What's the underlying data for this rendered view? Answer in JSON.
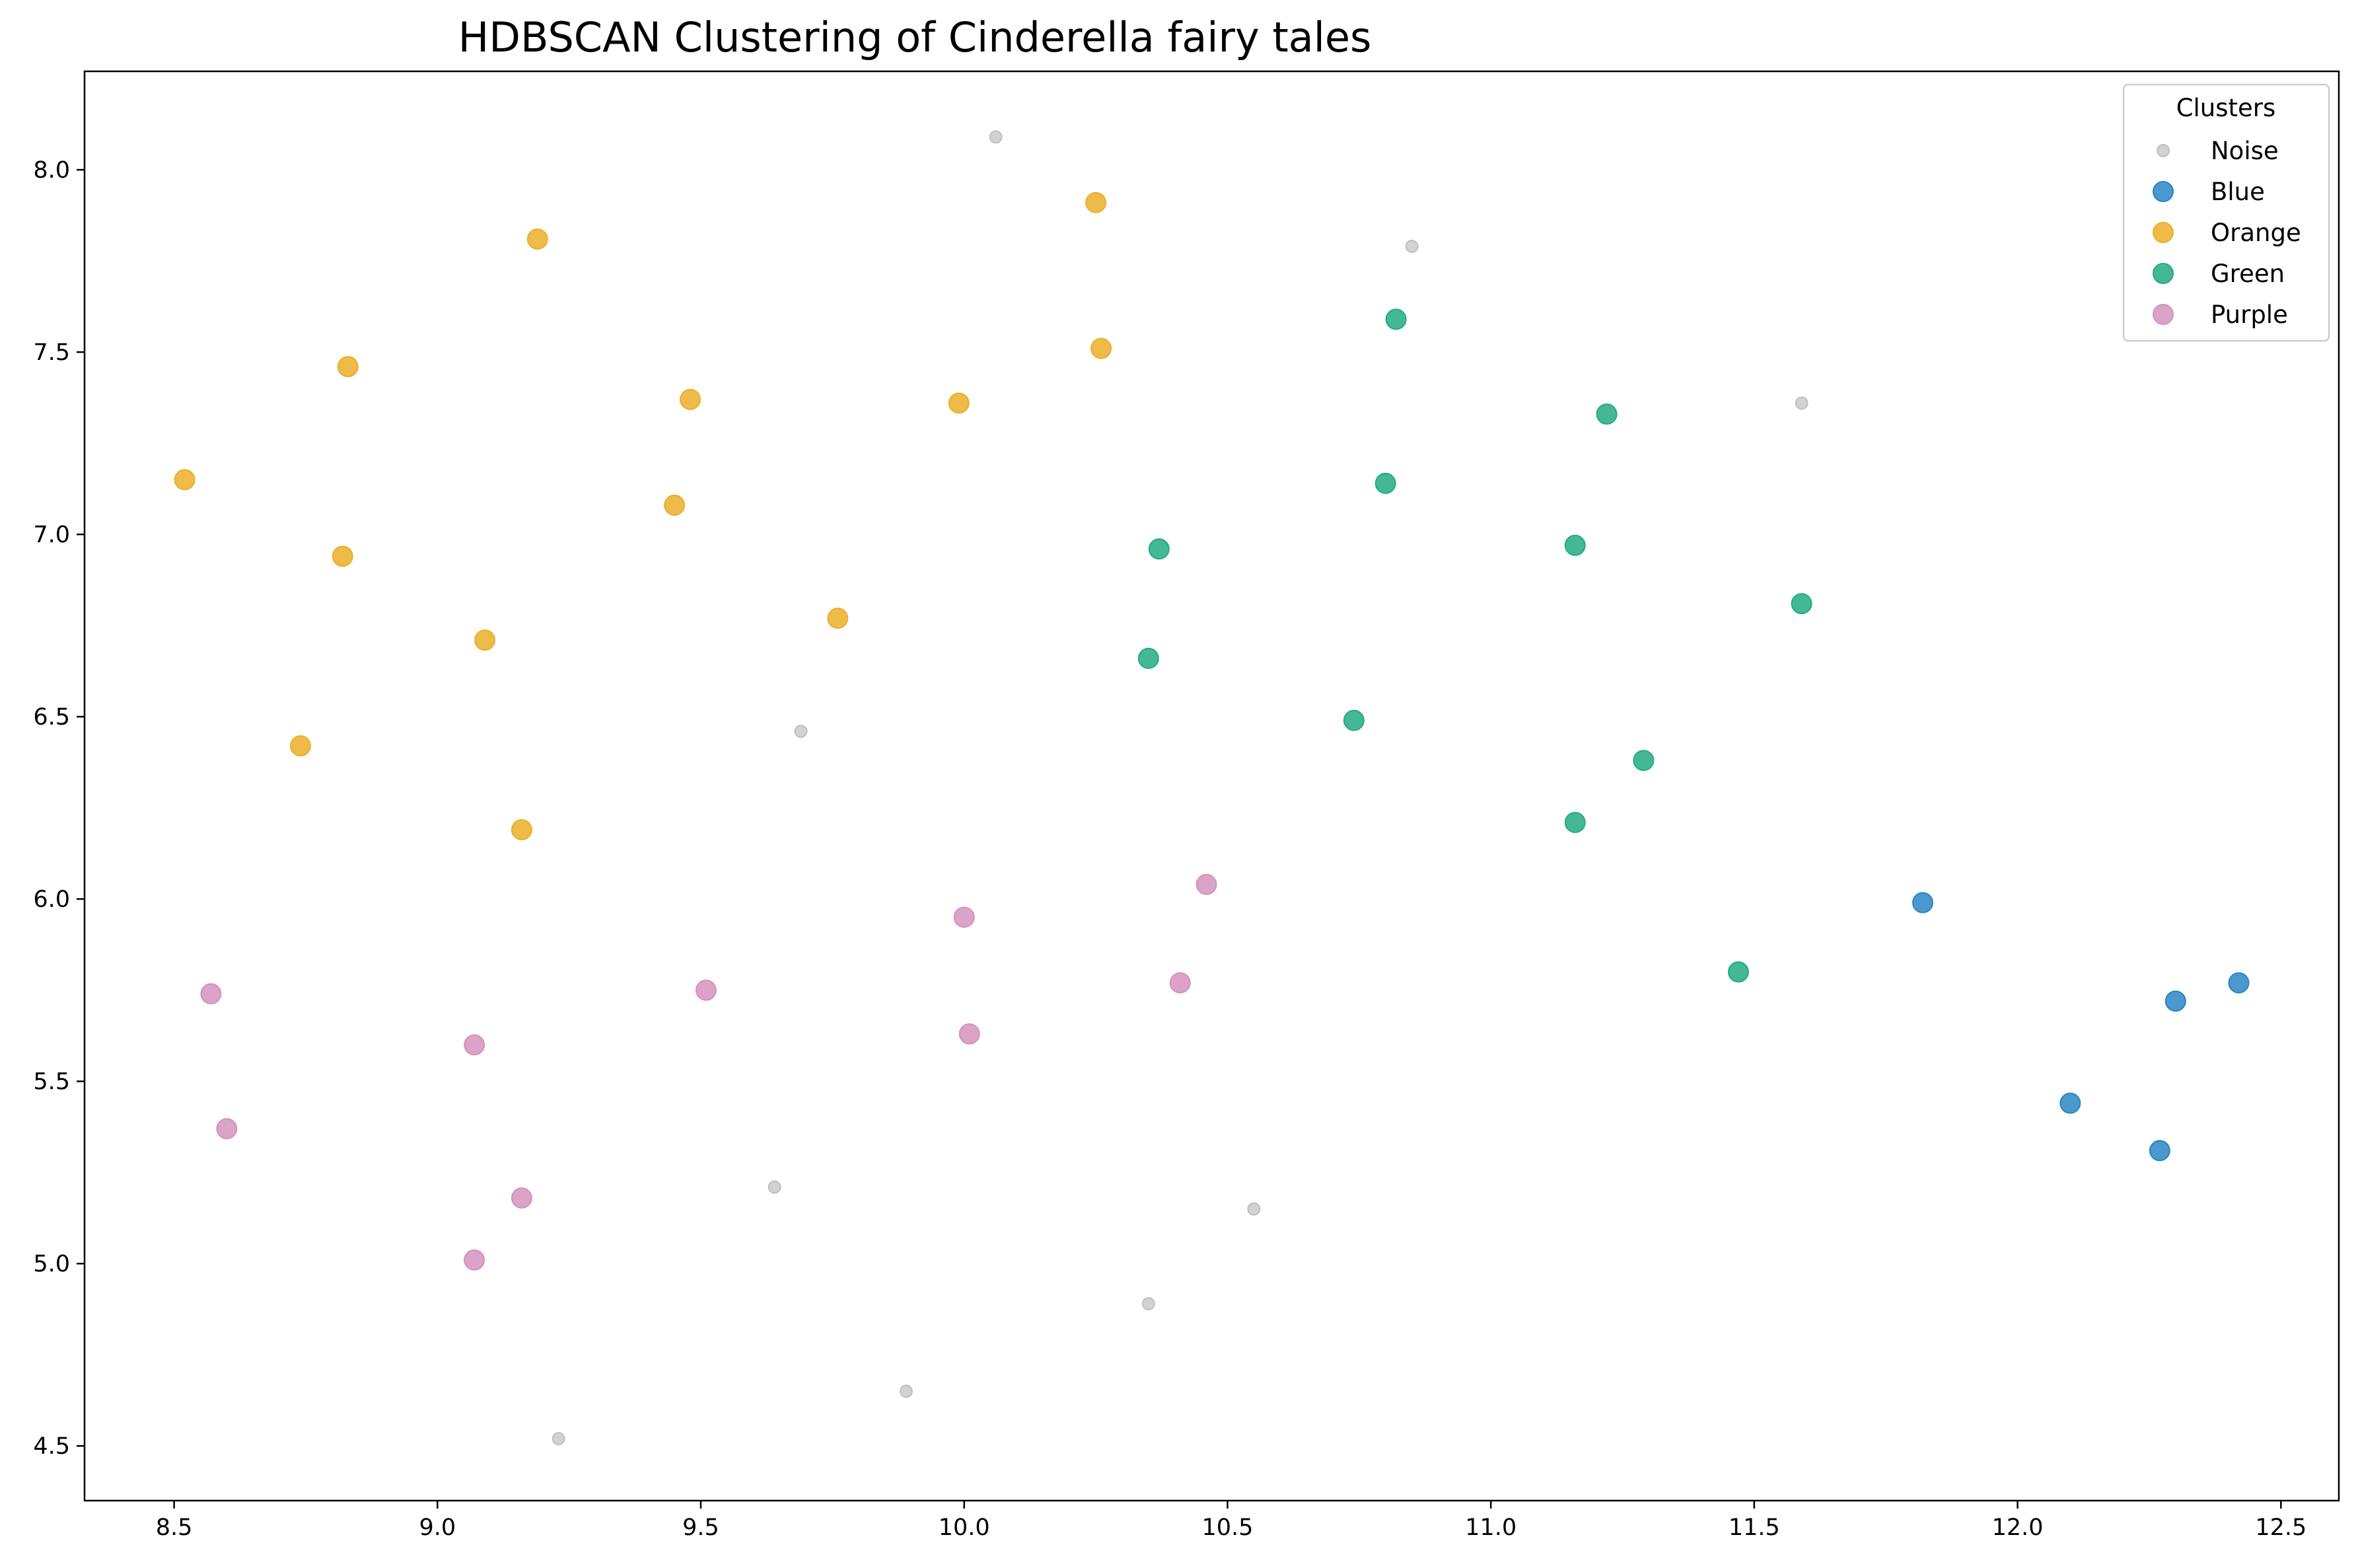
{
  "chart_data": {
    "type": "scatter",
    "title": "HDBSCAN Clustering of Cinderella fairy tales",
    "xlabel": "",
    "ylabel": "",
    "xlim": [
      8.33,
      12.61
    ],
    "ylim": [
      4.35,
      8.27
    ],
    "xticks": [
      8.5,
      9.0,
      9.5,
      10.0,
      10.5,
      11.0,
      11.5,
      12.0,
      12.5
    ],
    "yticks": [
      4.5,
      5.0,
      5.5,
      6.0,
      6.5,
      7.0,
      7.5,
      8.0
    ],
    "xtick_labels": [
      "8.5",
      "9.0",
      "9.5",
      "10.0",
      "10.5",
      "11.0",
      "11.5",
      "12.0",
      "12.5"
    ],
    "ytick_labels": [
      "4.5",
      "5.0",
      "5.5",
      "6.0",
      "6.5",
      "7.0",
      "7.5",
      "8.0"
    ],
    "grid": false,
    "legend": {
      "title": "Clusters",
      "position": "top-right"
    },
    "series": [
      {
        "name": "Noise",
        "color": "#bfbfbf",
        "marker": "small",
        "points": [
          [
            10.06,
            8.09
          ],
          [
            10.85,
            7.79
          ],
          [
            11.59,
            7.36
          ],
          [
            9.69,
            6.46
          ],
          [
            9.64,
            5.21
          ],
          [
            10.55,
            5.15
          ],
          [
            10.35,
            4.89
          ],
          [
            9.89,
            4.65
          ],
          [
            9.23,
            4.52
          ]
        ]
      },
      {
        "name": "Blue",
        "color": "#2a86c4",
        "marker": "large",
        "points": [
          [
            11.82,
            5.99
          ],
          [
            12.42,
            5.77
          ],
          [
            12.3,
            5.72
          ],
          [
            12.1,
            5.44
          ],
          [
            12.27,
            5.31
          ]
        ]
      },
      {
        "name": "Orange",
        "color": "#ebaf2a",
        "marker": "large",
        "points": [
          [
            10.25,
            7.91
          ],
          [
            9.19,
            7.81
          ],
          [
            8.83,
            7.46
          ],
          [
            10.26,
            7.51
          ],
          [
            9.48,
            7.37
          ],
          [
            9.99,
            7.36
          ],
          [
            8.52,
            7.15
          ],
          [
            9.45,
            7.08
          ],
          [
            8.82,
            6.94
          ],
          [
            9.09,
            6.71
          ],
          [
            9.76,
            6.77
          ],
          [
            8.74,
            6.42
          ],
          [
            9.16,
            6.19
          ]
        ]
      },
      {
        "name": "Green",
        "color": "#23ab84",
        "marker": "large",
        "points": [
          [
            10.82,
            7.59
          ],
          [
            11.22,
            7.33
          ],
          [
            10.8,
            7.14
          ],
          [
            10.37,
            6.96
          ],
          [
            11.16,
            6.97
          ],
          [
            11.59,
            6.81
          ],
          [
            10.35,
            6.66
          ],
          [
            10.74,
            6.49
          ],
          [
            11.29,
            6.38
          ],
          [
            11.16,
            6.21
          ],
          [
            11.47,
            5.8
          ]
        ]
      },
      {
        "name": "Purple",
        "color": "#d493bd",
        "marker": "large",
        "points": [
          [
            10.46,
            6.04
          ],
          [
            10.0,
            5.95
          ],
          [
            8.57,
            5.74
          ],
          [
            9.51,
            5.75
          ],
          [
            10.41,
            5.77
          ],
          [
            9.07,
            5.6
          ],
          [
            10.01,
            5.63
          ],
          [
            8.6,
            5.37
          ],
          [
            9.16,
            5.18
          ],
          [
            9.07,
            5.01
          ]
        ]
      }
    ]
  }
}
